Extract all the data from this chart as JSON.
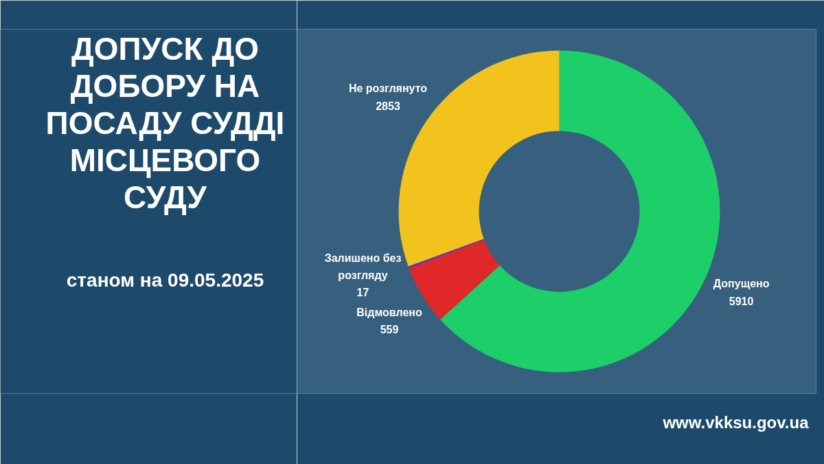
{
  "chart_data": {
    "type": "donut",
    "title": "ДОПУСК ДО ДОБОРУ НА ПОСАДУ СУДДІ МІСЦЕВОГО СУДУ",
    "subtitle": "станом на 09.05.2025",
    "categories": [
      "Допущено",
      "Відмовлено",
      "Залишено без розгляду",
      "Не розглянуто"
    ],
    "values": [
      5910,
      559,
      17,
      2853
    ],
    "colors": [
      "#1ccf68",
      "#e02828",
      "#5b2fe0",
      "#f2c31c"
    ],
    "data_labels": true,
    "annotations": [
      "www.vkksu.gov.ua"
    ]
  }
}
